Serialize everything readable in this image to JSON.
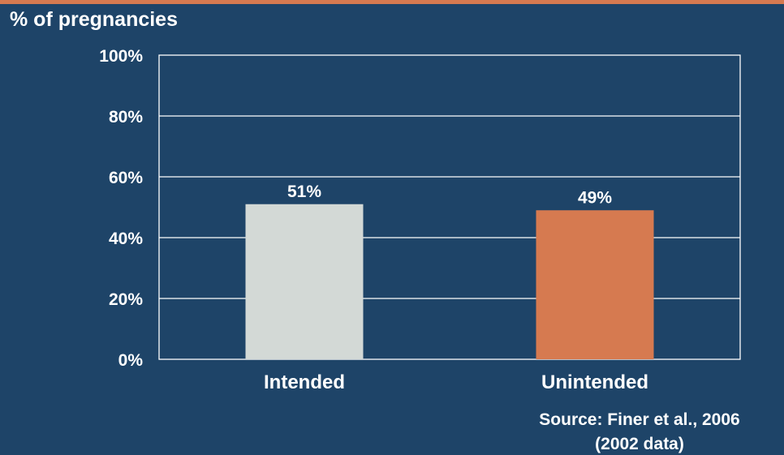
{
  "colors": {
    "background": "#1e4468",
    "accent_rule": "#d67a50",
    "intended_bar": "#d3d9d6",
    "unintended_bar": "#d67a50",
    "text": "#ffffff",
    "grid": "#ffffff"
  },
  "source": {
    "line1": "Source: Finer et al., 2006",
    "line2": "(2002 data)"
  },
  "chart_data": {
    "type": "bar",
    "title": "",
    "xlabel": "",
    "ylabel": "% of pregnancies",
    "categories": [
      "Intended",
      "Unintended"
    ],
    "values": [
      51,
      49
    ],
    "data_labels": [
      "51%",
      "49%"
    ],
    "bar_colors": [
      "#d3d9d6",
      "#d67a50"
    ],
    "ylim": [
      0,
      100
    ],
    "yticks": [
      0,
      20,
      40,
      60,
      80,
      100
    ],
    "ytick_labels": [
      "0%",
      "20%",
      "40%",
      "60%",
      "80%",
      "100%"
    ],
    "grid": true,
    "legend": "none"
  }
}
